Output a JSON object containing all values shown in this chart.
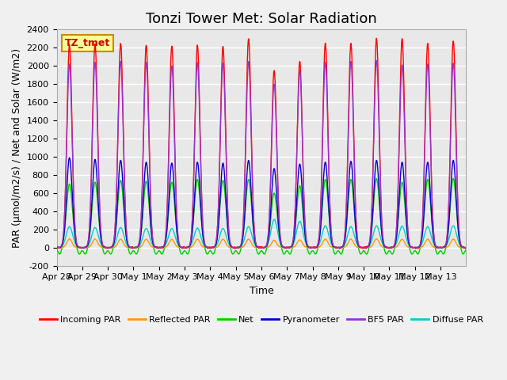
{
  "title": "Tonzi Tower Met: Solar Radiation",
  "ylabel": "PAR (μmol/m2/s) / Net and Solar (W/m2)",
  "xlabel": "Time",
  "ylim": [
    -200,
    2400
  ],
  "yticks": [
    -200,
    0,
    200,
    400,
    600,
    800,
    1000,
    1200,
    1400,
    1600,
    1800,
    2000,
    2200,
    2400
  ],
  "x_tick_labels": [
    "Apr 28",
    "Apr 29",
    "Apr 30",
    "May 1",
    "May 2",
    "May 3",
    "May 4",
    "May 5",
    "May 6",
    "May 7",
    "May 8",
    "May 9",
    "May 10",
    "May 11",
    "May 12",
    "May 13"
  ],
  "legend_labels": [
    "Incoming PAR",
    "Reflected PAR",
    "Net",
    "Pyranometer",
    "BF5 PAR",
    "Diffuse PAR"
  ],
  "legend_colors": [
    "#ff0000",
    "#ff9900",
    "#00cc00",
    "#0000cc",
    "#9933cc",
    "#00cccc"
  ],
  "series_colors": {
    "incoming_par": "#ff0000",
    "reflected_par": "#ff9900",
    "net": "#00cc00",
    "pyranometer": "#0000cc",
    "bf5_par": "#9933cc",
    "diffuse_par": "#00cccc"
  },
  "n_days": 16,
  "points_per_day": 96,
  "annotation_text": "TZ_tmet",
  "annotation_bbox_color": "#ffff99",
  "annotation_bbox_edge": "#cc8800",
  "background_color": "#e8e8e8",
  "grid_color": "#ffffff",
  "title_fontsize": 13,
  "axis_fontsize": 9,
  "tick_fontsize": 8,
  "incoming_par_peaks": [
    2230,
    2240,
    2250,
    2230,
    2220,
    2230,
    2210,
    2300,
    1950,
    2050,
    2250,
    2250,
    2300,
    2300,
    2250,
    2280
  ],
  "pyranometer_peaks": [
    990,
    970,
    960,
    940,
    930,
    940,
    930,
    960,
    870,
    920,
    940,
    950,
    960,
    940,
    940,
    960
  ],
  "net_peaks": [
    700,
    720,
    740,
    730,
    720,
    750,
    740,
    750,
    600,
    680,
    750,
    750,
    760,
    720,
    750,
    760
  ],
  "reflected_par_peaks": [
    95,
    93,
    92,
    91,
    90,
    92,
    91,
    92,
    80,
    85,
    93,
    93,
    95,
    91,
    92,
    93
  ],
  "bf5_par_peaks": [
    2020,
    2040,
    2050,
    2040,
    2000,
    2040,
    2030,
    2050,
    1800,
    1950,
    2040,
    2050,
    2060,
    2010,
    2020,
    2030
  ],
  "diffuse_par_peaks": [
    230,
    220,
    220,
    210,
    210,
    215,
    210,
    230,
    310,
    290,
    240,
    230,
    240,
    235,
    230,
    240
  ]
}
